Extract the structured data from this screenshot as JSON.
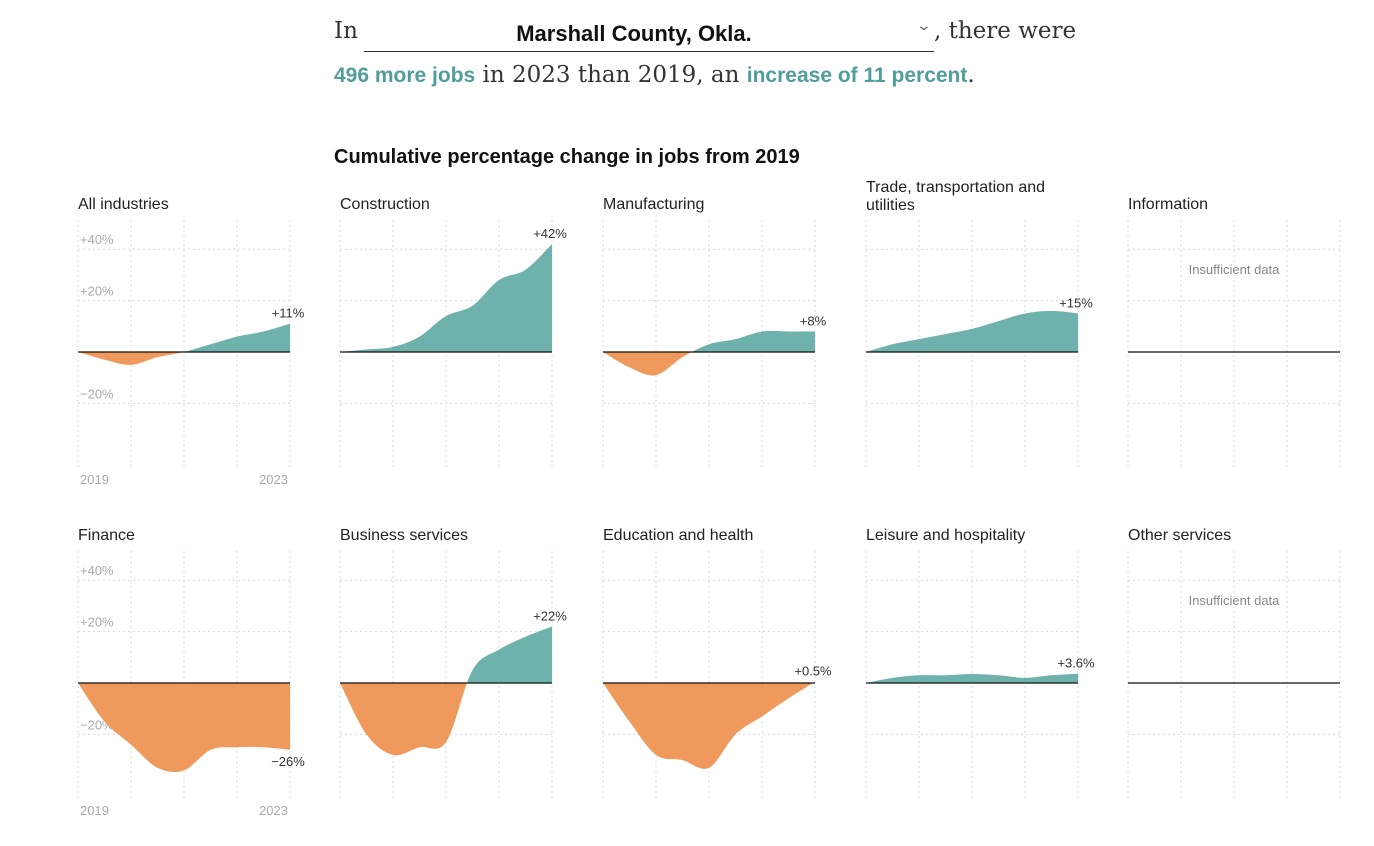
{
  "intro": {
    "prefix": "In",
    "county": "Marshall County, Okla.",
    "suffix": ", there were",
    "jobs": "496 more jobs",
    "middle": " in 2023 than 2019, an ",
    "increase": "increase of 11 percent",
    "end": "."
  },
  "colors": {
    "positive": "#6fb1ad",
    "negative": "#ef9a5c",
    "highlight": "#4f9e97"
  },
  "icons": {
    "dropdown": "chevron-down-icon"
  },
  "chart_data": {
    "type": "area",
    "title": "Cumulative percentage change in jobs from 2019",
    "ylim": [
      -45,
      45
    ],
    "grid": true,
    "y_ticks": [
      "+40%",
      "+20%",
      "−20%"
    ],
    "x_start_label": "2019",
    "x_end_label": "2023",
    "x": [
      2019,
      2019.5,
      2020,
      2020.5,
      2021,
      2021.5,
      2022,
      2022.5,
      2023
    ],
    "panels": [
      {
        "name": "All industries",
        "end_label": "+11%",
        "values": [
          0,
          -3,
          -5,
          -2,
          0,
          3,
          6,
          8,
          11
        ]
      },
      {
        "name": "Construction",
        "end_label": "+42%",
        "values": [
          0,
          1,
          2,
          6,
          14,
          18,
          28,
          32,
          42
        ]
      },
      {
        "name": "Manufacturing",
        "end_label": "+8%",
        "values": [
          0,
          -6,
          -9,
          -2,
          3,
          5,
          8,
          8,
          8
        ]
      },
      {
        "name": "Trade, transportation and utilities",
        "end_label": "+15%",
        "values": [
          0,
          3,
          5,
          7,
          9,
          12,
          15,
          16,
          15
        ]
      },
      {
        "name": "Information",
        "note": "Insufficient data",
        "values": []
      },
      {
        "name": "Finance",
        "end_label": "−26%",
        "values": [
          0,
          -15,
          -24,
          -33,
          -34,
          -26,
          -25,
          -25,
          -26
        ]
      },
      {
        "name": "Business services",
        "end_label": "+22%",
        "values": [
          0,
          -20,
          -28,
          -25,
          -23,
          5,
          13,
          18,
          22
        ]
      },
      {
        "name": "Education and health",
        "end_label": "+0.5%",
        "values": [
          0,
          -15,
          -28,
          -30,
          -33,
          -20,
          -13,
          -6,
          0.5
        ]
      },
      {
        "name": "Leisure and hospitality",
        "end_label": "+3.6%",
        "values": [
          0,
          2,
          3,
          3,
          3.5,
          3,
          2,
          3,
          3.6
        ]
      },
      {
        "name": "Other services",
        "note": "Insufficient data",
        "values": []
      }
    ]
  }
}
